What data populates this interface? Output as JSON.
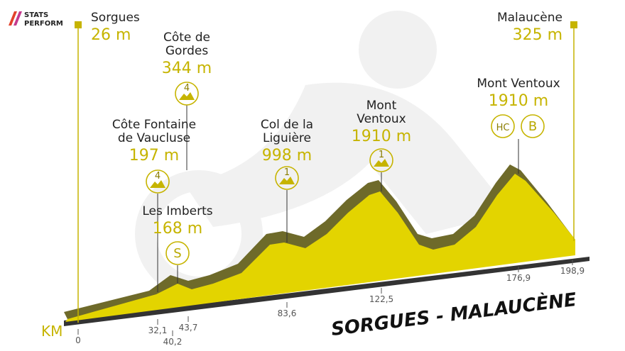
{
  "logo": {
    "line1": "STATS",
    "line2": "PERFORM"
  },
  "start": {
    "name": "Sorgues",
    "altitude": "26 m"
  },
  "finish": {
    "name": "Malaucène",
    "altitude": "325 m"
  },
  "points": [
    {
      "name": [
        "Côte de",
        "Gordes"
      ],
      "altitude": "344 m",
      "badges": [
        "4"
      ]
    },
    {
      "name": [
        "Côte Fontaine",
        "de Vaucluse"
      ],
      "altitude": "197 m",
      "badges": [
        "4"
      ]
    },
    {
      "name": [
        "Les Imberts"
      ],
      "altitude": "168 m",
      "badges": [
        "S"
      ]
    },
    {
      "name": [
        "Col de la",
        "Liguière"
      ],
      "altitude": "998 m",
      "badges": [
        "1"
      ]
    },
    {
      "name": [
        "Mont",
        "Ventoux"
      ],
      "altitude": "1910 m",
      "badges": [
        "1"
      ]
    },
    {
      "name": [
        "Mont Ventoux"
      ],
      "altitude": "1910 m",
      "badges": [
        "HC",
        "B"
      ]
    }
  ],
  "km_label": "KM",
  "km_markers": [
    "0",
    "32,1",
    "40,2",
    "43,7",
    "83,6",
    "122,5",
    "176,9",
    "198,9"
  ],
  "stage_title": "SORGUES - MALAUCÈNE"
}
